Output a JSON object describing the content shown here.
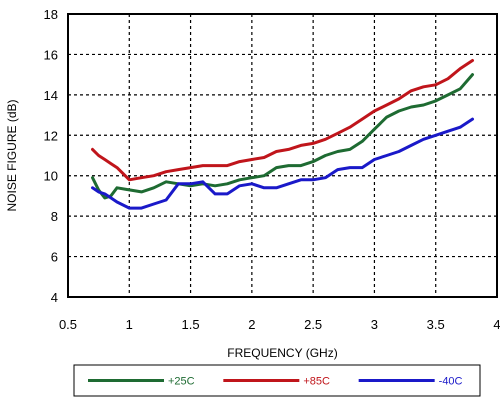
{
  "chart_data": {
    "type": "line",
    "title": "",
    "xlabel": "FREQUENCY (GHz)",
    "ylabel": "NOISE FIGURE (dB)",
    "xlim": [
      0.5,
      4
    ],
    "ylim": [
      4,
      18
    ],
    "xticks": [
      0.5,
      1,
      1.5,
      2,
      2.5,
      3,
      3.5,
      4
    ],
    "xtick_labels": [
      "0.5",
      "1",
      "1.5",
      "2",
      "2.5",
      "3",
      "3.5",
      "4"
    ],
    "yticks": [
      4,
      6,
      8,
      10,
      12,
      14,
      16,
      18
    ],
    "ytick_labels": [
      "4",
      "6",
      "8",
      "10",
      "12",
      "14",
      "16",
      "18"
    ],
    "grid": true,
    "legend_position": "bottom",
    "series": [
      {
        "name": "+25C",
        "color": "#1e6b32",
        "x": [
          0.7,
          0.75,
          0.8,
          0.85,
          0.9,
          1.0,
          1.1,
          1.2,
          1.3,
          1.4,
          1.5,
          1.6,
          1.7,
          1.8,
          1.9,
          2.0,
          2.1,
          2.2,
          2.3,
          2.4,
          2.5,
          2.6,
          2.7,
          2.8,
          2.9,
          3.0,
          3.1,
          3.2,
          3.3,
          3.4,
          3.5,
          3.6,
          3.7,
          3.8
        ],
        "values": [
          9.9,
          9.3,
          8.9,
          9.0,
          9.4,
          9.3,
          9.2,
          9.4,
          9.7,
          9.6,
          9.5,
          9.6,
          9.5,
          9.6,
          9.8,
          9.9,
          10.0,
          10.4,
          10.5,
          10.5,
          10.7,
          11.0,
          11.2,
          11.3,
          11.7,
          12.3,
          12.9,
          13.2,
          13.4,
          13.5,
          13.7,
          14.0,
          14.3,
          15.0
        ]
      },
      {
        "name": "+85C",
        "color": "#c0151b",
        "x": [
          0.7,
          0.75,
          0.8,
          0.85,
          0.9,
          1.0,
          1.1,
          1.2,
          1.3,
          1.4,
          1.5,
          1.6,
          1.7,
          1.8,
          1.9,
          2.0,
          2.1,
          2.2,
          2.3,
          2.4,
          2.5,
          2.6,
          2.7,
          2.8,
          2.9,
          3.0,
          3.1,
          3.2,
          3.3,
          3.4,
          3.5,
          3.6,
          3.7,
          3.8
        ],
        "values": [
          11.3,
          11.0,
          10.8,
          10.6,
          10.4,
          9.8,
          9.9,
          10.0,
          10.2,
          10.3,
          10.4,
          10.5,
          10.5,
          10.5,
          10.7,
          10.8,
          10.9,
          11.2,
          11.3,
          11.5,
          11.6,
          11.8,
          12.1,
          12.4,
          12.8,
          13.2,
          13.5,
          13.8,
          14.2,
          14.4,
          14.5,
          14.8,
          15.3,
          15.7
        ]
      },
      {
        "name": "-40C",
        "color": "#1a19c9",
        "x": [
          0.7,
          0.75,
          0.8,
          0.85,
          0.9,
          1.0,
          1.1,
          1.2,
          1.3,
          1.4,
          1.5,
          1.6,
          1.7,
          1.8,
          1.9,
          2.0,
          2.1,
          2.2,
          2.3,
          2.4,
          2.5,
          2.6,
          2.7,
          2.8,
          2.9,
          3.0,
          3.1,
          3.2,
          3.3,
          3.4,
          3.5,
          3.6,
          3.7,
          3.8
        ],
        "values": [
          9.4,
          9.2,
          9.1,
          8.9,
          8.7,
          8.4,
          8.4,
          8.6,
          8.8,
          9.6,
          9.6,
          9.7,
          9.1,
          9.1,
          9.5,
          9.6,
          9.4,
          9.4,
          9.6,
          9.8,
          9.8,
          9.9,
          10.3,
          10.4,
          10.4,
          10.8,
          11.0,
          11.2,
          11.5,
          11.8,
          12.0,
          12.2,
          12.4,
          12.8
        ]
      }
    ]
  }
}
